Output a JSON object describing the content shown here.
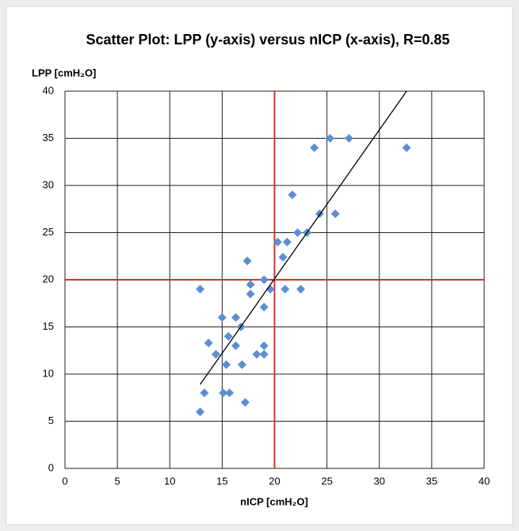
{
  "chart_data": {
    "type": "scatter",
    "title": "Scatter Plot: LPP (y-axis) versus nICP (x-axis), R=0.85",
    "xlabel": "nICP [cmH₂O]",
    "ylabel": "LPP [cmH₂O]",
    "xlim": [
      0,
      40
    ],
    "ylim": [
      0,
      40
    ],
    "xticks": [
      0,
      5,
      10,
      15,
      20,
      25,
      30,
      35,
      40
    ],
    "yticks": [
      0,
      5,
      10,
      15,
      20,
      25,
      30,
      35,
      40
    ],
    "grid": true,
    "series": [
      {
        "color": "#5b8fd1",
        "x": [
          12.9,
          12.9,
          13.3,
          13.7,
          14.4,
          15.0,
          15.1,
          15.7,
          15.4,
          15.6,
          16.3,
          16.3,
          16.8,
          16.9,
          17.2,
          17.4,
          17.7,
          17.7,
          18.3,
          19.0,
          19.0,
          19.0,
          19.0,
          19.6,
          20.3,
          21.2,
          20.8,
          21.0,
          21.7,
          22.2,
          22.5,
          23.1,
          23.8,
          24.3,
          25.3,
          25.8,
          27.1,
          32.6
        ],
        "values": [
          19.0,
          6.0,
          8.0,
          13.3,
          12.1,
          16.0,
          8.0,
          8.0,
          11.0,
          14.0,
          16.0,
          13.0,
          15.0,
          11.0,
          7.0,
          22.0,
          19.5,
          18.5,
          12.1,
          12.1,
          13.0,
          17.1,
          20.0,
          19.0,
          24.0,
          24.0,
          22.4,
          19.0,
          29.0,
          25.0,
          19.0,
          25.0,
          34.0,
          27.0,
          35.0,
          27.0,
          35.0,
          34.0
        ]
      }
    ],
    "trendline": {
      "x": [
        12.9,
        32.6
      ],
      "values": [
        8.9,
        40
      ],
      "color": "#000000"
    },
    "reference_lines": {
      "x": 20,
      "y": 20,
      "color": "#d0312d"
    }
  }
}
